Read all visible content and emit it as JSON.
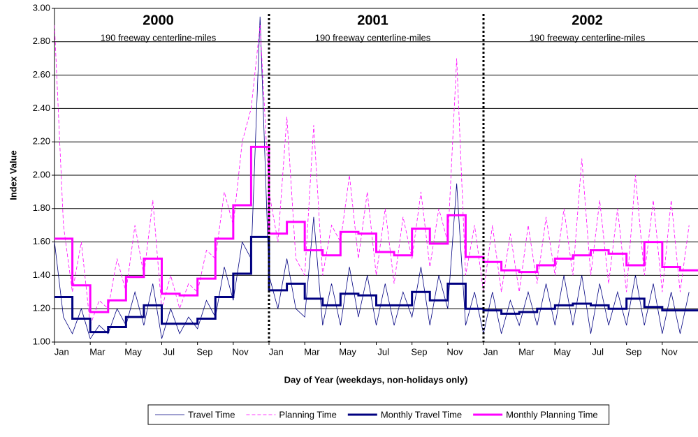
{
  "chart_data": {
    "type": "line",
    "x_label": "Day of Year (weekdays, non-holidays only)",
    "y_label": "Index Value",
    "xlim": [
      0,
      36
    ],
    "xticks": [
      {
        "value": 0,
        "label": "Jan"
      },
      {
        "value": 2,
        "label": "Mar"
      },
      {
        "value": 4,
        "label": "May"
      },
      {
        "value": 6,
        "label": "Jul"
      },
      {
        "value": 8,
        "label": "Sep"
      },
      {
        "value": 10,
        "label": "Nov"
      },
      {
        "value": 12,
        "label": "Jan"
      },
      {
        "value": 14,
        "label": "Mar"
      },
      {
        "value": 16,
        "label": "May"
      },
      {
        "value": 18,
        "label": "Jul"
      },
      {
        "value": 20,
        "label": "Sep"
      },
      {
        "value": 22,
        "label": "Nov"
      },
      {
        "value": 24,
        "label": "Jan"
      },
      {
        "value": 26,
        "label": "Mar"
      },
      {
        "value": 28,
        "label": "May"
      },
      {
        "value": 30,
        "label": "Jul"
      },
      {
        "value": 32,
        "label": "Sep"
      },
      {
        "value": 34,
        "label": "Nov"
      }
    ],
    "ylim": [
      1,
      3
    ],
    "yticks": [
      {
        "value": 1,
        "label": "1.00"
      },
      {
        "value": 1.2,
        "label": "1.20"
      },
      {
        "value": 1.4,
        "label": "1.40"
      },
      {
        "value": 1.6,
        "label": "1.60"
      },
      {
        "value": 1.8,
        "label": "1.80"
      },
      {
        "value": 2,
        "label": "2.00"
      },
      {
        "value": 2.2,
        "label": "2.20"
      },
      {
        "value": 2.4,
        "label": "2.40"
      },
      {
        "value": 2.6,
        "label": "2.60"
      },
      {
        "value": 2.8,
        "label": "2.80"
      },
      {
        "value": 3,
        "label": "3.00"
      }
    ],
    "grid": true,
    "legend": "bottom",
    "dividers": [
      12,
      24
    ],
    "annotations": [
      {
        "title": "2000",
        "text": "190 freeway centerline-miles"
      },
      {
        "title": "2001",
        "text": "190 freeway centerline-miles"
      },
      {
        "title": "2002",
        "text": "190 freeway centerline-miles"
      }
    ],
    "series": [
      {
        "name": "Travel Time",
        "color": "#000080",
        "width": 0.8,
        "dash": "none",
        "step": false,
        "x": [
          0,
          0.5,
          1,
          1.5,
          2,
          2.5,
          3,
          3.5,
          4,
          4.5,
          5,
          5.5,
          6,
          6.5,
          7,
          7.5,
          8,
          8.5,
          9,
          9.5,
          10,
          10.5,
          11,
          11.5,
          12,
          12.5,
          13,
          13.5,
          14,
          14.5,
          15,
          15.5,
          16,
          16.5,
          17,
          17.5,
          18,
          18.5,
          19,
          19.5,
          20,
          20.5,
          21,
          21.5,
          22,
          22.5,
          23,
          23.5,
          24,
          24.5,
          25,
          25.5,
          26,
          26.5,
          27,
          27.5,
          28,
          28.5,
          29,
          29.5,
          30,
          30.5,
          31,
          31.5,
          32,
          32.5,
          33,
          33.5,
          34,
          34.5,
          35,
          35.5
        ],
        "values": [
          1.6,
          1.15,
          1.05,
          1.2,
          1.02,
          1.1,
          1.05,
          1.2,
          1.1,
          1.3,
          1.1,
          1.35,
          1.02,
          1.2,
          1.05,
          1.15,
          1.08,
          1.25,
          1.15,
          1.45,
          1.25,
          1.6,
          1.5,
          2.95,
          1.4,
          1.2,
          1.5,
          1.2,
          1.15,
          1.75,
          1.1,
          1.35,
          1.1,
          1.45,
          1.15,
          1.4,
          1.1,
          1.35,
          1.1,
          1.3,
          1.15,
          1.45,
          1.1,
          1.4,
          1.2,
          1.95,
          1.1,
          1.3,
          1.05,
          1.3,
          1.05,
          1.25,
          1.1,
          1.3,
          1.1,
          1.35,
          1.1,
          1.4,
          1.1,
          1.4,
          1.05,
          1.35,
          1.1,
          1.3,
          1.1,
          1.4,
          1.1,
          1.35,
          1.05,
          1.3,
          1.05,
          1.3
        ]
      },
      {
        "name": "Planning Time",
        "color": "#ff00ff",
        "width": 0.8,
        "dash": "5 3",
        "step": false,
        "x": [
          0,
          0.5,
          1,
          1.5,
          2,
          2.5,
          3,
          3.5,
          4,
          4.5,
          5,
          5.5,
          6,
          6.5,
          7,
          7.5,
          8,
          8.5,
          9,
          9.5,
          10,
          10.5,
          11,
          11.5,
          12,
          12.5,
          13,
          13.5,
          14,
          14.5,
          15,
          15.5,
          16,
          16.5,
          17,
          17.5,
          18,
          18.5,
          19,
          19.5,
          20,
          20.5,
          21,
          21.5,
          22,
          22.5,
          23,
          23.5,
          24,
          24.5,
          25,
          25.5,
          26,
          26.5,
          27,
          27.5,
          28,
          28.5,
          29,
          29.5,
          30,
          30.5,
          31,
          31.5,
          32,
          32.5,
          33,
          33.5,
          34,
          34.5,
          35,
          35.5
        ],
        "values": [
          2.9,
          1.7,
          1.3,
          1.6,
          1.1,
          1.25,
          1.2,
          1.5,
          1.3,
          1.7,
          1.4,
          1.85,
          1.2,
          1.4,
          1.2,
          1.35,
          1.3,
          1.55,
          1.5,
          1.9,
          1.7,
          2.2,
          2.4,
          2.9,
          1.9,
          1.6,
          2.35,
          1.5,
          1.4,
          2.3,
          1.4,
          1.7,
          1.6,
          2.0,
          1.5,
          1.9,
          1.4,
          1.8,
          1.35,
          1.75,
          1.5,
          1.9,
          1.45,
          1.8,
          1.6,
          2.7,
          1.4,
          1.7,
          1.3,
          1.7,
          1.3,
          1.65,
          1.3,
          1.7,
          1.35,
          1.75,
          1.4,
          1.8,
          1.4,
          2.1,
          1.4,
          1.85,
          1.35,
          1.8,
          1.3,
          2.0,
          1.4,
          1.85,
          1.3,
          1.85,
          1.3,
          1.7
        ]
      },
      {
        "name": "Monthly Travel Time",
        "color": "#000080",
        "width": 3,
        "dash": "none",
        "step": true,
        "x": [
          0,
          1,
          2,
          3,
          4,
          5,
          6,
          7,
          8,
          9,
          10,
          11,
          12,
          13,
          14,
          15,
          16,
          17,
          18,
          19,
          20,
          21,
          22,
          23,
          24,
          25,
          26,
          27,
          28,
          29,
          30,
          31,
          32,
          33,
          34,
          35
        ],
        "values": [
          1.27,
          1.14,
          1.06,
          1.09,
          1.15,
          1.22,
          1.11,
          1.11,
          1.14,
          1.27,
          1.41,
          1.63,
          1.31,
          1.35,
          1.26,
          1.22,
          1.29,
          1.28,
          1.22,
          1.22,
          1.3,
          1.25,
          1.35,
          1.2,
          1.19,
          1.17,
          1.18,
          1.2,
          1.22,
          1.23,
          1.22,
          1.2,
          1.26,
          1.21,
          1.19,
          1.19
        ]
      },
      {
        "name": "Monthly Planning Time",
        "color": "#ff00ff",
        "width": 3,
        "dash": "none",
        "step": true,
        "x": [
          0,
          1,
          2,
          3,
          4,
          5,
          6,
          7,
          8,
          9,
          10,
          11,
          12,
          13,
          14,
          15,
          16,
          17,
          18,
          19,
          20,
          21,
          22,
          23,
          24,
          25,
          26,
          27,
          28,
          29,
          30,
          31,
          32,
          33,
          34,
          35
        ],
        "values": [
          1.62,
          1.34,
          1.18,
          1.25,
          1.39,
          1.5,
          1.29,
          1.28,
          1.38,
          1.62,
          1.82,
          2.17,
          1.65,
          1.72,
          1.55,
          1.52,
          1.66,
          1.65,
          1.54,
          1.52,
          1.68,
          1.59,
          1.76,
          1.51,
          1.48,
          1.43,
          1.42,
          1.46,
          1.5,
          1.52,
          1.55,
          1.53,
          1.46,
          1.6,
          1.45,
          1.43
        ]
      }
    ]
  }
}
